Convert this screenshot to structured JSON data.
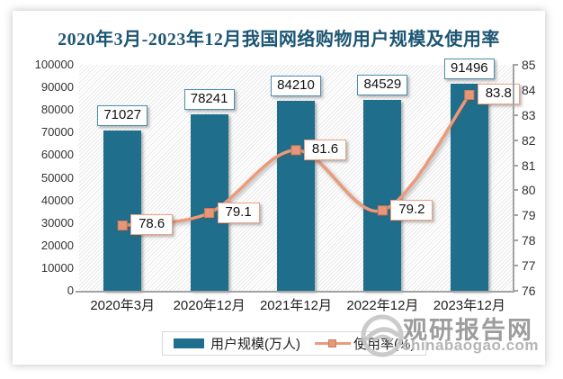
{
  "title": "2020年3月-2023年12月我国网络购物用户规模及使用率",
  "title_color": "#1d5673",
  "chart_data": {
    "type": "bar+line combo",
    "categories": [
      "2020年3月",
      "2020年12月",
      "2021年12月",
      "2022年12月",
      "2023年12月"
    ],
    "series": [
      {
        "name": "用户规模(万人)",
        "type": "bar",
        "axis": "left",
        "values": [
          71027,
          78241,
          84210,
          84529,
          91496
        ],
        "labels": [
          "71027",
          "78241",
          "84210",
          "84529",
          "91496"
        ],
        "color": "#1f6e8c"
      },
      {
        "name": "使用率(%)",
        "type": "line",
        "axis": "right",
        "values": [
          78.6,
          79.1,
          81.6,
          79.2,
          83.8
        ],
        "labels": [
          "78.6",
          "79.1",
          "81.6",
          "79.2",
          "83.8"
        ],
        "color": "#eb9a7b",
        "marker": "square",
        "marker_fill": "#e79678",
        "marker_stroke": "#cf7d5e"
      }
    ],
    "left_axis": {
      "min": 0,
      "max": 100000,
      "step": 10000,
      "ticks": [
        "100000",
        "90000",
        "80000",
        "70000",
        "60000",
        "50000",
        "40000",
        "30000",
        "20000",
        "10000",
        "0"
      ]
    },
    "right_axis": {
      "min": 76,
      "max": 85,
      "step": 1,
      "ticks": [
        "85",
        "84",
        "83",
        "82",
        "81",
        "80",
        "79",
        "78",
        "77",
        "76"
      ]
    },
    "legend_position": "bottom",
    "grid": "off",
    "plot_background": "diagonal-hatch"
  },
  "legend": {
    "bar_label": "用户规模(万人)",
    "line_label": "使用率(%)"
  },
  "watermark": {
    "name": "观研报告网",
    "site": "chinabaogao.com"
  }
}
